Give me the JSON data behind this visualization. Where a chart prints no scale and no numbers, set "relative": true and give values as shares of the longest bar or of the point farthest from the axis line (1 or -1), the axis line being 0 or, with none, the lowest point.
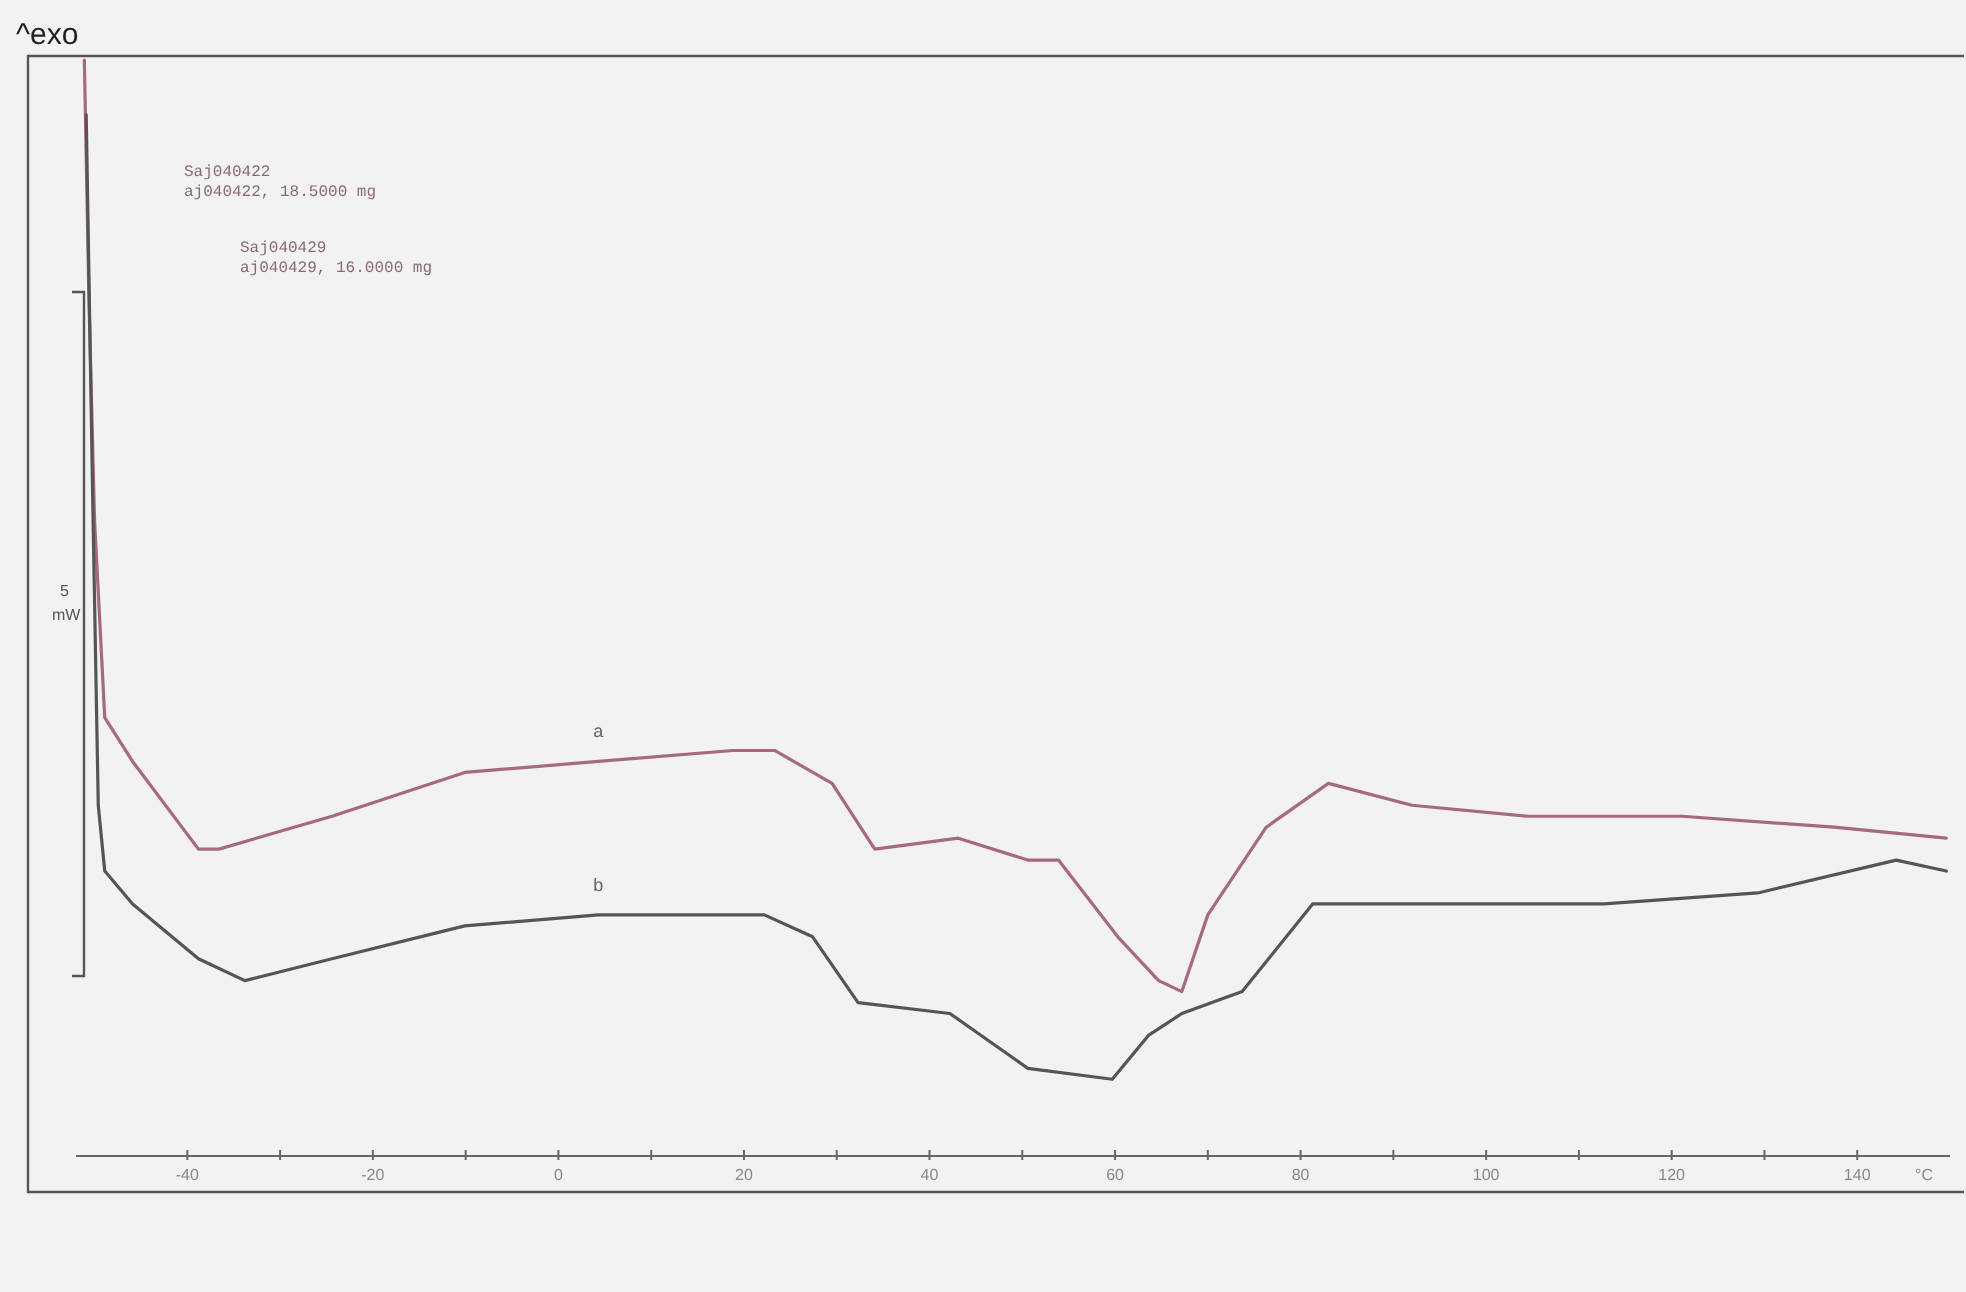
{
  "chart_data": {
    "type": "line",
    "relative": true,
    "xlabel": "°C",
    "xlim": [
      -52,
      150
    ],
    "xticks": [
      -40,
      {
        "value": -30,
        "label": null
      },
      -20,
      {
        "value": -10,
        "label": null
      },
      0,
      {
        "value": 10,
        "label": null
      },
      20,
      {
        "value": 30,
        "label": null
      },
      40,
      {
        "value": 50,
        "label": null
      },
      60,
      {
        "value": 70,
        "label": null
      },
      80,
      {
        "value": 90,
        "label": null
      },
      100,
      {
        "value": 110,
        "label": null
      },
      120,
      {
        "value": 130,
        "label": null
      },
      140
    ],
    "annotations": [
      "^exo",
      "Saj040422",
      "aj040422, 18.5000 mg",
      "Saj040429",
      "aj040429, 16.0000 mg",
      "5",
      "mW"
    ],
    "series": [
      {
        "name": "a",
        "color": "#a66a78",
        "x": [
          -51.1,
          -50.6,
          -50.0,
          -48.9,
          -45.9,
          -38.8,
          -36.6,
          -24.4,
          -10.1,
          4.3,
          18.8,
          23.3,
          29.5,
          34.1,
          43.1,
          50.6,
          53.9,
          60.3,
          64.7,
          67.2,
          70.0,
          76.3,
          83.0,
          92.0,
          104.5,
          121.1,
          137.5,
          149.6
        ],
        "values": [
          1.0,
          0.78,
          0.58,
          0.4,
          0.36,
          0.28,
          0.28,
          0.31,
          0.35,
          0.36,
          0.37,
          0.37,
          0.34,
          0.28,
          0.29,
          0.27,
          0.27,
          0.2,
          0.16,
          0.15,
          0.22,
          0.3,
          0.34,
          0.32,
          0.31,
          0.31,
          0.3,
          0.29
        ]
      },
      {
        "name": "b",
        "color": "#555555",
        "x": [
          -50.9,
          -50.2,
          -49.6,
          -48.9,
          -45.9,
          -38.8,
          -33.8,
          -24.4,
          -10.1,
          4.3,
          22.2,
          27.4,
          32.3,
          42.2,
          50.6,
          59.7,
          63.6,
          67.2,
          73.7,
          81.3,
          89.4,
          94.4,
          112.7,
          129.3,
          144.2,
          149.6
        ],
        "values": [
          0.95,
          0.6,
          0.32,
          0.26,
          0.23,
          0.18,
          0.16,
          0.18,
          0.21,
          0.22,
          0.22,
          0.2,
          0.14,
          0.13,
          0.08,
          0.07,
          0.11,
          0.13,
          0.15,
          0.23,
          0.23,
          0.23,
          0.23,
          0.24,
          0.27,
          0.26
        ]
      }
    ]
  }
}
